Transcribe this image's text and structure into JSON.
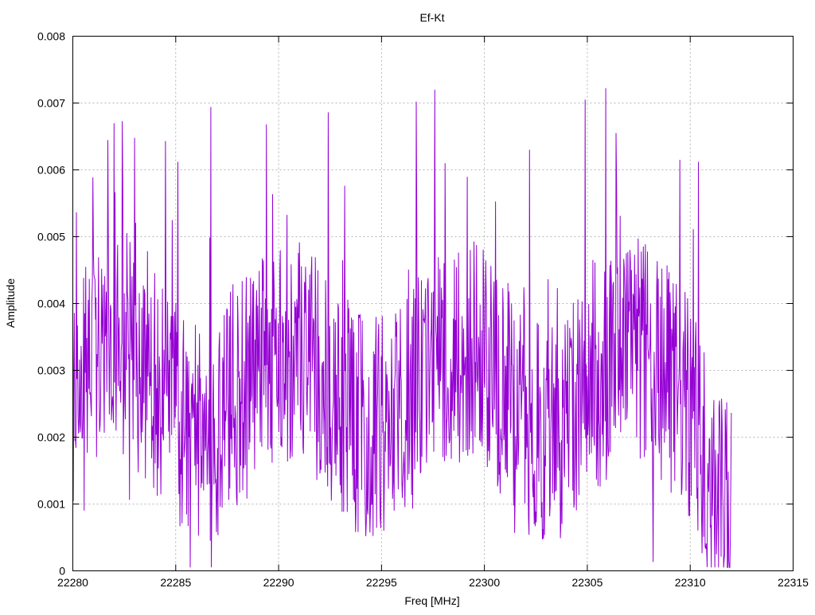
{
  "chart_data": {
    "type": "line",
    "title": "Ef-Kt",
    "xlabel": "Freq [MHz]",
    "ylabel": "Amplitude",
    "xlim": [
      22280,
      22315
    ],
    "ylim": [
      0,
      0.008
    ],
    "xticks": [
      "22280",
      "22285",
      "22290",
      "22295",
      "22300",
      "22305",
      "22310",
      "22315"
    ],
    "yticks": [
      "0",
      "0.001",
      "0.002",
      "0.003",
      "0.004",
      "0.005",
      "0.006",
      "0.007",
      "0.008"
    ],
    "grid": true,
    "series_color": "#9400d3",
    "x_range_of_data": [
      22280,
      22312
    ],
    "point_count": 1280,
    "notable_peaks": [
      {
        "x": 22282.4,
        "y": 0.00673
      },
      {
        "x": 22283.0,
        "y": 0.00648
      },
      {
        "x": 22284.5,
        "y": 0.00643
      },
      {
        "x": 22285.1,
        "y": 0.00612
      },
      {
        "x": 22286.7,
        "y": 0.00694
      },
      {
        "x": 22289.4,
        "y": 0.00668
      },
      {
        "x": 22292.4,
        "y": 0.00686
      },
      {
        "x": 22296.7,
        "y": 0.00702
      },
      {
        "x": 22297.6,
        "y": 0.0072
      },
      {
        "x": 22298.1,
        "y": 0.0061
      },
      {
        "x": 22302.2,
        "y": 0.0063
      },
      {
        "x": 22304.9,
        "y": 0.00705
      },
      {
        "x": 22305.9,
        "y": 0.00722
      },
      {
        "x": 22306.4,
        "y": 0.00655
      },
      {
        "x": 22309.5,
        "y": 0.00615
      },
      {
        "x": 22310.4,
        "y": 0.00612
      }
    ]
  }
}
